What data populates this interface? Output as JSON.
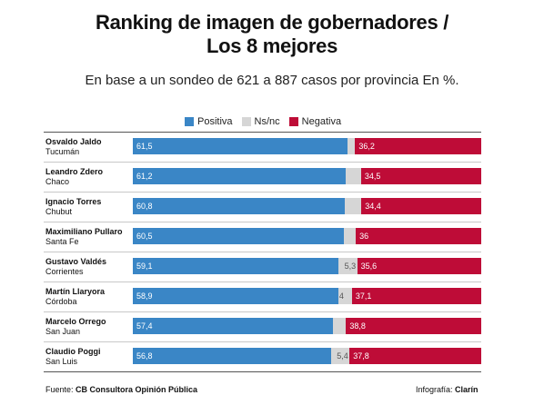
{
  "title_line1": "Ranking de imagen de gobernadores /",
  "title_line2": "Los 8 mejores",
  "subtitle": "En base a un sondeo de 621 a 887 casos por provincia En %.",
  "footer": {
    "source_prefix": "Fuente:",
    "source_name": "CB Consultora Opinión Pública",
    "credit_prefix": "Infografía:",
    "credit_name": "Clarín"
  },
  "colors": {
    "positiva": "#3a86c6",
    "nsnc": "#d6d6d6",
    "negativa": "#be0c37"
  },
  "chart_data": {
    "type": "bar",
    "stacked": true,
    "orientation": "horizontal",
    "legend_position": "top-center",
    "categories": [
      {
        "name": "Osvaldo Jaldo",
        "province": "Tucumán"
      },
      {
        "name": "Leandro Zdero",
        "province": "Chaco"
      },
      {
        "name": "Ignacio Torres",
        "province": "Chubut"
      },
      {
        "name": "Maximiliano Pullaro",
        "province": "Santa Fe"
      },
      {
        "name": "Gustavo Valdés",
        "province": "Corrientes"
      },
      {
        "name": "Martín Llaryora",
        "province": "Córdoba"
      },
      {
        "name": "Marcelo Orrego",
        "province": "San Juan"
      },
      {
        "name": "Claudio Poggi",
        "province": "San Luis"
      }
    ],
    "series": [
      {
        "name": "Positiva",
        "values": [
          61.5,
          61.2,
          60.8,
          60.5,
          59.1,
          58.9,
          57.4,
          56.8
        ],
        "labels": [
          "61,5",
          "61,2",
          "60,8",
          "60,5",
          "59,1",
          "58,9",
          "57,4",
          "56,8"
        ]
      },
      {
        "name": "Ns/nc",
        "values": [
          2.3,
          4.3,
          4.8,
          3.5,
          5.3,
          4.0,
          3.8,
          5.4
        ],
        "labels": [
          "",
          "",
          "",
          "",
          "5,3",
          "4",
          "",
          "5,4"
        ]
      },
      {
        "name": "Negativa",
        "values": [
          36.2,
          34.5,
          34.4,
          36.0,
          35.6,
          37.1,
          38.8,
          37.8
        ],
        "labels": [
          "36,2",
          "34,5",
          "34,4",
          "36",
          "35,6",
          "37,1",
          "38,8",
          "37,8"
        ]
      }
    ]
  }
}
